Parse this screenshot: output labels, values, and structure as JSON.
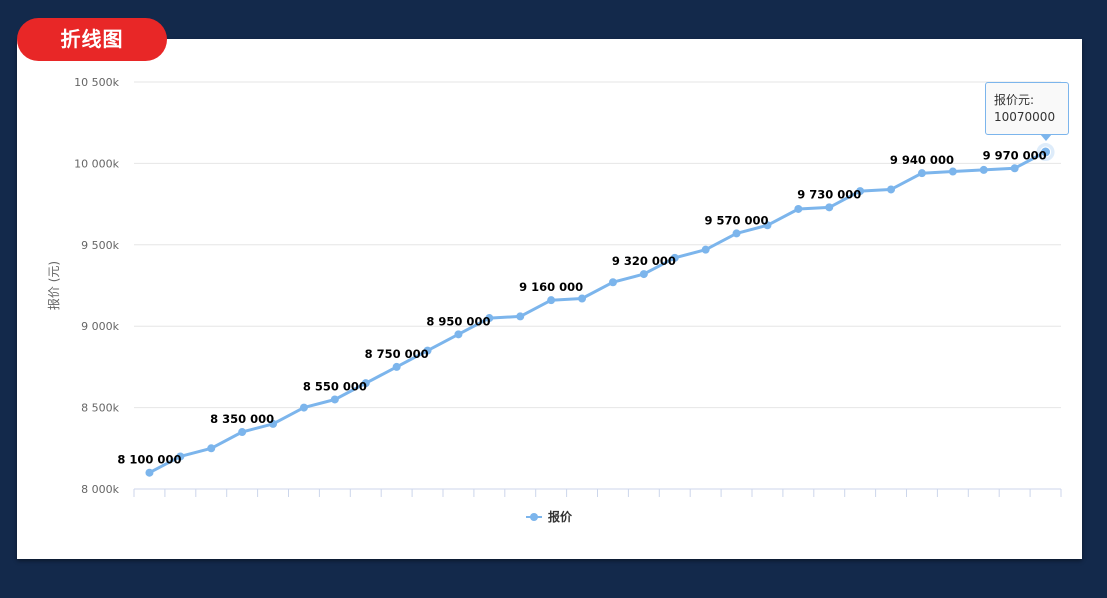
{
  "badge": {
    "title": "折线图"
  },
  "colors": {
    "series": "#7cb5ec",
    "badge": "#e82727",
    "background": "#13294b"
  },
  "tooltip": {
    "label": "报价元:",
    "value": "10070000"
  },
  "chart_data": {
    "type": "line",
    "title": "",
    "xlabel": "",
    "ylabel": "报价 (元)",
    "ylim": [
      8000000,
      10500000
    ],
    "y_ticks": [
      {
        "value": 8000000,
        "label": "8 000k"
      },
      {
        "value": 8500000,
        "label": "8 500k"
      },
      {
        "value": 9000000,
        "label": "9 000k"
      },
      {
        "value": 9500000,
        "label": "9 500k"
      },
      {
        "value": 10000000,
        "label": "10 000k"
      },
      {
        "value": 10500000,
        "label": "10 500k"
      }
    ],
    "legend": {
      "position": "bottom-center",
      "entries": [
        "报价"
      ]
    },
    "grid": true,
    "series": [
      {
        "name": "报价",
        "values": [
          8100000,
          8200000,
          8250000,
          8350000,
          8400000,
          8500000,
          8550000,
          8650000,
          8750000,
          8850000,
          8950000,
          9050000,
          9060000,
          9160000,
          9170000,
          9270000,
          9320000,
          9420000,
          9470000,
          9570000,
          9620000,
          9720000,
          9730000,
          9830000,
          9840000,
          9940000,
          9950000,
          9960000,
          9970000,
          10070000
        ],
        "labels": [
          {
            "index": 0,
            "text": "8 100 000"
          },
          {
            "index": 3,
            "text": "8 350 000"
          },
          {
            "index": 6,
            "text": "8 550 000"
          },
          {
            "index": 8,
            "text": "8 750 000"
          },
          {
            "index": 10,
            "text": "8 950 000"
          },
          {
            "index": 13,
            "text": "9 160 000"
          },
          {
            "index": 16,
            "text": "9 320 000"
          },
          {
            "index": 19,
            "text": "9 570 000"
          },
          {
            "index": 22,
            "text": "9 730 000"
          },
          {
            "index": 25,
            "text": "9 940 000"
          },
          {
            "index": 28,
            "text": "9 970 000"
          }
        ]
      }
    ]
  }
}
